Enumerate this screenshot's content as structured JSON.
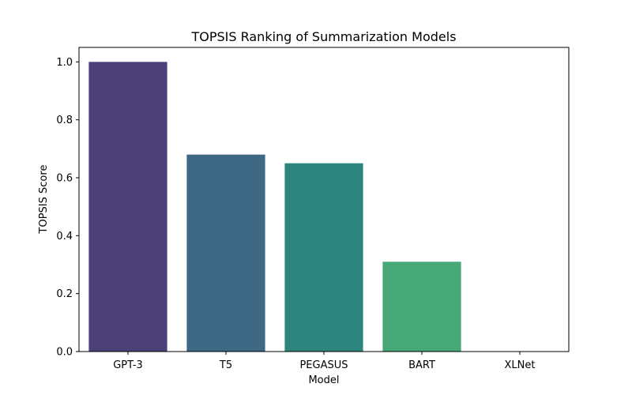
{
  "chart_data": {
    "type": "bar",
    "title": "TOPSIS Ranking of Summarization Models",
    "xlabel": "Model",
    "ylabel": "TOPSIS Score",
    "categories": [
      "GPT-3",
      "T5",
      "PEGASUS",
      "BART",
      "XLNet"
    ],
    "values": [
      1.0,
      0.68,
      0.65,
      0.31,
      0.0
    ],
    "colors": [
      "#4c4078",
      "#3e6883",
      "#2e857d",
      "#47a877",
      "#6ece58"
    ],
    "ylim": [
      0,
      1.05
    ],
    "yticks": [
      "0.0",
      "0.2",
      "0.4",
      "0.6",
      "0.8",
      "1.0"
    ],
    "grid": false,
    "legend": "none"
  }
}
